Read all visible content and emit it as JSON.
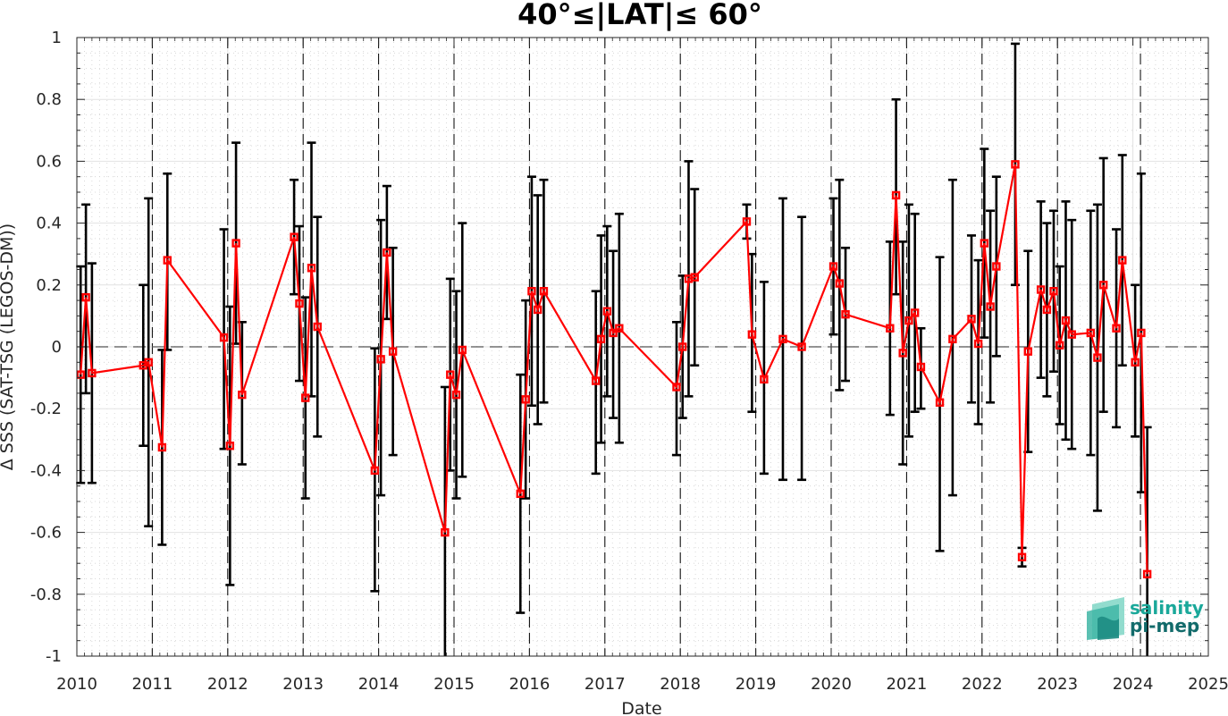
{
  "chart_data": {
    "type": "line",
    "title": "40°≤|LAT|≤ 60°",
    "xlabel": "Date",
    "ylabel": "Δ SSS (SAT-TSG (LEGOS-DM))",
    "xlim": [
      2010,
      2025
    ],
    "ylim": [
      -1,
      1
    ],
    "x_ticks": [
      "2010",
      "2011",
      "2012",
      "2013",
      "2014",
      "2015",
      "2016",
      "2017",
      "2018",
      "2019",
      "2020",
      "2021",
      "2022",
      "2023",
      "2024",
      "2025"
    ],
    "y_ticks": [
      "1",
      "0.8",
      "0.6",
      "0.4",
      "0.2",
      "0",
      "-0.2",
      "-0.4",
      "-0.6",
      "-0.8",
      "-1"
    ],
    "year_markers": [
      2011.0,
      2012.0,
      2013.0,
      2014.0,
      2015.0,
      2016.0,
      2017.0,
      2018.0,
      2019.0,
      2020.0,
      2021.0,
      2022.0,
      2023.0,
      2024.1
    ],
    "grid": true,
    "zero_line": true,
    "series": [
      {
        "color": "#ff0000",
        "error_color": "#000000",
        "points": [
          {
            "x": 2010.05,
            "y": -0.09,
            "lo": -0.44,
            "hi": 0.26
          },
          {
            "x": 2010.12,
            "y": 0.16,
            "lo": -0.15,
            "hi": 0.46
          },
          {
            "x": 2010.2,
            "y": -0.085,
            "lo": -0.44,
            "hi": 0.27
          },
          {
            "x": 2010.88,
            "y": -0.06,
            "lo": -0.32,
            "hi": 0.2
          },
          {
            "x": 2010.95,
            "y": -0.05,
            "lo": -0.58,
            "hi": 0.48
          },
          {
            "x": 2011.13,
            "y": -0.325,
            "lo": -0.64,
            "hi": -0.01
          },
          {
            "x": 2011.2,
            "y": 0.28,
            "lo": -0.01,
            "hi": 0.56
          },
          {
            "x": 2011.95,
            "y": 0.03,
            "lo": -0.33,
            "hi": 0.38
          },
          {
            "x": 2012.03,
            "y": -0.32,
            "lo": -0.77,
            "hi": 0.13
          },
          {
            "x": 2012.11,
            "y": 0.335,
            "lo": 0.01,
            "hi": 0.66
          },
          {
            "x": 2012.19,
            "y": -0.155,
            "lo": -0.38,
            "hi": 0.08
          },
          {
            "x": 2012.88,
            "y": 0.355,
            "lo": 0.17,
            "hi": 0.54
          },
          {
            "x": 2012.95,
            "y": 0.14,
            "lo": -0.11,
            "hi": 0.39
          },
          {
            "x": 2013.03,
            "y": -0.165,
            "lo": -0.49,
            "hi": 0.16
          },
          {
            "x": 2013.11,
            "y": 0.255,
            "lo": -0.16,
            "hi": 0.66
          },
          {
            "x": 2013.19,
            "y": 0.065,
            "lo": -0.29,
            "hi": 0.42
          },
          {
            "x": 2013.95,
            "y": -0.4,
            "lo": -0.79,
            "hi": -0.005
          },
          {
            "x": 2014.03,
            "y": -0.04,
            "lo": -0.48,
            "hi": 0.41
          },
          {
            "x": 2014.11,
            "y": 0.305,
            "lo": 0.09,
            "hi": 0.52
          },
          {
            "x": 2014.19,
            "y": -0.015,
            "lo": -0.35,
            "hi": 0.32
          },
          {
            "x": 2014.88,
            "y": -0.6,
            "lo": -1.0,
            "hi": -0.13
          },
          {
            "x": 2014.95,
            "y": -0.09,
            "lo": -0.4,
            "hi": 0.22
          },
          {
            "x": 2015.03,
            "y": -0.155,
            "lo": -0.49,
            "hi": 0.18
          },
          {
            "x": 2015.11,
            "y": -0.01,
            "lo": -0.42,
            "hi": 0.4
          },
          {
            "x": 2015.88,
            "y": -0.475,
            "lo": -0.86,
            "hi": -0.09
          },
          {
            "x": 2015.95,
            "y": -0.17,
            "lo": -0.49,
            "hi": 0.15
          },
          {
            "x": 2016.03,
            "y": 0.18,
            "lo": -0.19,
            "hi": 0.55
          },
          {
            "x": 2016.11,
            "y": 0.12,
            "lo": -0.25,
            "hi": 0.49
          },
          {
            "x": 2016.19,
            "y": 0.18,
            "lo": -0.18,
            "hi": 0.54
          },
          {
            "x": 2016.88,
            "y": -0.11,
            "lo": -0.41,
            "hi": 0.18
          },
          {
            "x": 2016.95,
            "y": 0.025,
            "lo": -0.31,
            "hi": 0.36
          },
          {
            "x": 2017.03,
            "y": 0.115,
            "lo": -0.16,
            "hi": 0.39
          },
          {
            "x": 2017.11,
            "y": 0.045,
            "lo": -0.23,
            "hi": 0.31
          },
          {
            "x": 2017.19,
            "y": 0.06,
            "lo": -0.31,
            "hi": 0.43
          },
          {
            "x": 2017.95,
            "y": -0.13,
            "lo": -0.35,
            "hi": 0.08
          },
          {
            "x": 2018.03,
            "y": 0.0,
            "lo": -0.23,
            "hi": 0.23
          },
          {
            "x": 2018.11,
            "y": 0.22,
            "lo": -0.16,
            "hi": 0.6
          },
          {
            "x": 2018.19,
            "y": 0.225,
            "lo": -0.06,
            "hi": 0.51
          },
          {
            "x": 2018.88,
            "y": 0.405,
            "lo": 0.35,
            "hi": 0.46
          },
          {
            "x": 2018.95,
            "y": 0.04,
            "lo": -0.21,
            "hi": 0.3
          },
          {
            "x": 2019.11,
            "y": -0.105,
            "lo": -0.41,
            "hi": 0.21
          },
          {
            "x": 2019.36,
            "y": 0.025,
            "lo": -0.43,
            "hi": 0.48
          },
          {
            "x": 2019.61,
            "y": 0.0,
            "lo": -0.43,
            "hi": 0.42
          },
          {
            "x": 2020.03,
            "y": 0.26,
            "lo": 0.04,
            "hi": 0.48
          },
          {
            "x": 2020.11,
            "y": 0.205,
            "lo": -0.14,
            "hi": 0.54
          },
          {
            "x": 2020.19,
            "y": 0.105,
            "lo": -0.11,
            "hi": 0.32
          },
          {
            "x": 2020.78,
            "y": 0.06,
            "lo": -0.22,
            "hi": 0.34
          },
          {
            "x": 2020.86,
            "y": 0.49,
            "lo": 0.17,
            "hi": 0.8
          },
          {
            "x": 2020.95,
            "y": -0.02,
            "lo": -0.38,
            "hi": 0.34
          },
          {
            "x": 2021.03,
            "y": 0.085,
            "lo": -0.29,
            "hi": 0.46
          },
          {
            "x": 2021.11,
            "y": 0.11,
            "lo": -0.21,
            "hi": 0.43
          },
          {
            "x": 2021.19,
            "y": -0.065,
            "lo": -0.2,
            "hi": 0.06
          },
          {
            "x": 2021.44,
            "y": -0.18,
            "lo": -0.66,
            "hi": 0.29
          },
          {
            "x": 2021.61,
            "y": 0.025,
            "lo": -0.48,
            "hi": 0.54
          },
          {
            "x": 2021.86,
            "y": 0.09,
            "lo": -0.18,
            "hi": 0.36
          },
          {
            "x": 2021.95,
            "y": 0.01,
            "lo": -0.25,
            "hi": 0.28
          },
          {
            "x": 2022.03,
            "y": 0.335,
            "lo": 0.03,
            "hi": 0.64
          },
          {
            "x": 2022.11,
            "y": 0.13,
            "lo": -0.18,
            "hi": 0.44
          },
          {
            "x": 2022.19,
            "y": 0.26,
            "lo": -0.03,
            "hi": 0.55
          },
          {
            "x": 2022.44,
            "y": 0.59,
            "lo": 0.2,
            "hi": 0.98
          },
          {
            "x": 2022.53,
            "y": -0.68,
            "lo": -0.71,
            "hi": -0.65
          },
          {
            "x": 2022.61,
            "y": -0.015,
            "lo": -0.34,
            "hi": 0.31
          },
          {
            "x": 2022.78,
            "y": 0.185,
            "lo": -0.1,
            "hi": 0.47
          },
          {
            "x": 2022.86,
            "y": 0.12,
            "lo": -0.16,
            "hi": 0.4
          },
          {
            "x": 2022.95,
            "y": 0.18,
            "lo": -0.08,
            "hi": 0.44
          },
          {
            "x": 2023.03,
            "y": 0.005,
            "lo": -0.25,
            "hi": 0.26
          },
          {
            "x": 2023.11,
            "y": 0.085,
            "lo": -0.3,
            "hi": 0.47
          },
          {
            "x": 2023.19,
            "y": 0.04,
            "lo": -0.33,
            "hi": 0.41
          },
          {
            "x": 2023.44,
            "y": 0.045,
            "lo": -0.35,
            "hi": 0.44
          },
          {
            "x": 2023.53,
            "y": -0.035,
            "lo": -0.53,
            "hi": 0.46
          },
          {
            "x": 2023.61,
            "y": 0.2,
            "lo": -0.21,
            "hi": 0.61
          },
          {
            "x": 2023.78,
            "y": 0.06,
            "lo": -0.26,
            "hi": 0.38
          },
          {
            "x": 2023.86,
            "y": 0.28,
            "lo": -0.06,
            "hi": 0.62
          },
          {
            "x": 2024.03,
            "y": -0.05,
            "lo": -0.29,
            "hi": 0.2
          },
          {
            "x": 2024.11,
            "y": 0.045,
            "lo": -0.47,
            "hi": 0.56
          },
          {
            "x": 2024.19,
            "y": -0.735,
            "lo": -1.0,
            "hi": -0.26
          }
        ]
      }
    ]
  },
  "logo": {
    "line1": "salinity",
    "line2": "pi-mep",
    "color1": "#1aa89a",
    "color2": "#126b6b"
  }
}
